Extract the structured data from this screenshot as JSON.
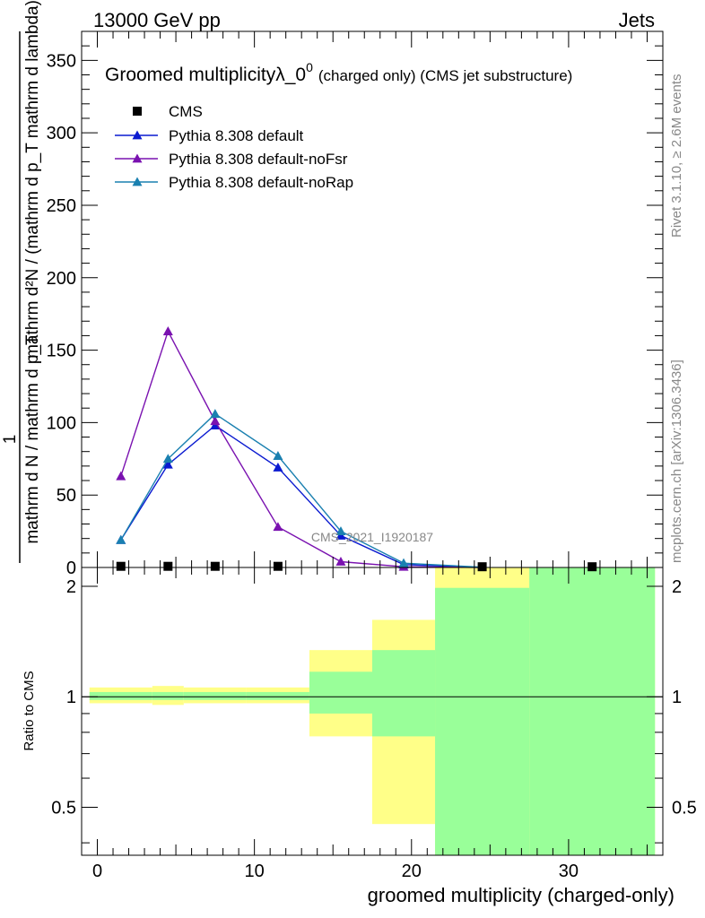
{
  "header": {
    "left": "13000 GeV pp",
    "right": "Jets"
  },
  "side_labels": {
    "rivet": "Rivet 3.1.10, ≥ 2.6M events",
    "mcplots": "mcplots.cern.ch [arXiv:1306.3436]"
  },
  "watermark": "CMS_2021_I1920187",
  "main_title": {
    "text": "Groomed multiplicityλ_0",
    "sup": "0",
    "small": "(charged only) (CMS jet substructure)"
  },
  "ylabel_top": {
    "num": "1",
    "den": "mathrm d N / mathrm d p_T",
    "expr": "mathrm d²N / (mathrm d p_T mathrm d lambda)"
  },
  "ratio_ylabel": "Ratio to CMS",
  "xlabel": "groomed multiplicity (charged-only)",
  "colors": {
    "cms": "#000000",
    "default": "#0a1ad0",
    "noFsr": "#7a12b0",
    "noRap": "#1a80b0",
    "band_yellow": "#ffff88",
    "band_green": "#99ff99"
  },
  "chart_data": {
    "type": "line",
    "x_axis": {
      "range": [
        -1,
        36
      ],
      "ticks": [
        "0",
        "10",
        "20",
        "30"
      ]
    },
    "y_axis_main": {
      "range": [
        0,
        370
      ],
      "ticks": [
        "0",
        "50",
        "100",
        "150",
        "200",
        "250",
        "300",
        "350"
      ]
    },
    "y_axis_ratio": {
      "range": [
        0.37,
        2.25
      ],
      "ticks": [
        "0.5",
        "1",
        "2"
      ]
    },
    "legend": [
      "CMS",
      "Pythia 8.308 default",
      "Pythia 8.308 default-noFsr",
      "Pythia 8.308 default-noRap"
    ],
    "cms_points": {
      "name": "CMS",
      "x": [
        1.5,
        4.5,
        7.5,
        11.5,
        24.5,
        31.5
      ],
      "y": [
        0.8,
        0.8,
        0.8,
        0.8,
        0.5,
        0.5
      ]
    },
    "series": [
      {
        "name": "Pythia 8.308 default",
        "color_key": "default",
        "x": [
          1.5,
          4.5,
          7.5,
          11.5,
          15.5,
          19.5,
          24.5
        ],
        "y": [
          19,
          71,
          98,
          69,
          22,
          2,
          0
        ]
      },
      {
        "name": "Pythia 8.308 default-noFsr",
        "color_key": "noFsr",
        "x": [
          1.5,
          4.5,
          7.5,
          11.5,
          15.5,
          19.5,
          24.5
        ],
        "y": [
          63,
          163,
          101,
          28,
          4,
          0.5,
          0
        ]
      },
      {
        "name": "Pythia 8.308 default-noRap",
        "color_key": "noRap",
        "x": [
          1.5,
          4.5,
          7.5,
          11.5,
          15.5,
          19.5,
          24.5
        ],
        "y": [
          19,
          75,
          106,
          77,
          25,
          3,
          0.2
        ]
      }
    ],
    "ratio_bands": [
      {
        "x0": -0.5,
        "x1": 3.5,
        "yellow": [
          0.96,
          1.06
        ],
        "green": [
          0.98,
          1.03
        ]
      },
      {
        "x0": 3.5,
        "x1": 5.5,
        "yellow": [
          0.95,
          1.07
        ],
        "green": [
          0.98,
          1.03
        ]
      },
      {
        "x0": 5.5,
        "x1": 9.5,
        "yellow": [
          0.96,
          1.06
        ],
        "green": [
          0.98,
          1.03
        ]
      },
      {
        "x0": 9.5,
        "x1": 13.5,
        "yellow": [
          0.96,
          1.06
        ],
        "green": [
          0.98,
          1.03
        ]
      },
      {
        "x0": 13.5,
        "x1": 17.5,
        "yellow": [
          0.78,
          1.34
        ],
        "green": [
          0.9,
          1.17
        ]
      },
      {
        "x0": 17.5,
        "x1": 21.5,
        "yellow": [
          0.45,
          1.62
        ],
        "green": [
          0.78,
          1.34
        ]
      },
      {
        "x0": 21.5,
        "x1": 27.5,
        "yellow": [
          0.37,
          2.25
        ],
        "green": [
          0.37,
          1.98
        ]
      },
      {
        "x0": 27.5,
        "x1": 35.5,
        "yellow": [
          0.37,
          2.25
        ],
        "green": [
          0.37,
          2.25
        ]
      }
    ],
    "ratio_reference": 1
  }
}
